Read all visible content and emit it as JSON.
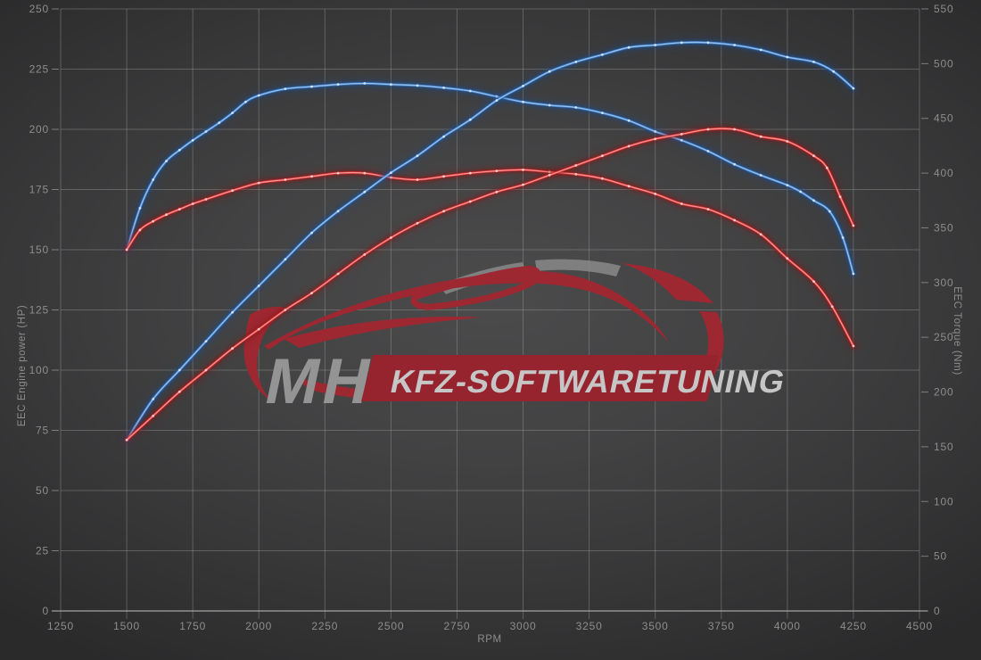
{
  "watermark": {
    "mh": "MH",
    "banner_text": "KFZ-SOFTWARETUNING",
    "car_color": "#9d2832",
    "banner_color": "#96242f",
    "mh_color": "#949494",
    "banner_text_color": "#c6c6c6",
    "glass_color": "#8d8d8d"
  },
  "chart_data": {
    "type": "line",
    "title": "",
    "xlabel": "RPM",
    "ylabel_left": "EEC Engine power (HP)",
    "ylabel_right": "EEC Torque (Nm)",
    "x_range": [
      1250,
      4500
    ],
    "y_left_range": [
      0,
      250
    ],
    "y_right_range": [
      0,
      550
    ],
    "x_ticks": [
      1250,
      1500,
      1750,
      2000,
      2250,
      2500,
      2750,
      3000,
      3250,
      3500,
      3750,
      4000,
      4250,
      4500
    ],
    "y_left_ticks": [
      0,
      25,
      50,
      75,
      100,
      125,
      150,
      175,
      200,
      225,
      250
    ],
    "y_right_ticks": [
      0,
      50,
      100,
      150,
      200,
      250,
      300,
      350,
      400,
      450,
      500,
      550
    ],
    "grid": true,
    "grid_color": "#9a9a9a",
    "legend": "none",
    "series": [
      {
        "name": "blue-torque",
        "axis": "right",
        "unit": "Nm",
        "glow": "#1c4f93",
        "line": "#3c7cc8",
        "core": "#9cc4ee",
        "dot": "#d6e6ff",
        "points": [
          [
            1500,
            330
          ],
          [
            1550,
            368
          ],
          [
            1600,
            394
          ],
          [
            1650,
            411
          ],
          [
            1700,
            421
          ],
          [
            1750,
            430
          ],
          [
            1800,
            438
          ],
          [
            1850,
            446
          ],
          [
            1900,
            455
          ],
          [
            1950,
            465
          ],
          [
            2000,
            471
          ],
          [
            2100,
            477
          ],
          [
            2200,
            479
          ],
          [
            2300,
            481
          ],
          [
            2400,
            482
          ],
          [
            2500,
            481
          ],
          [
            2600,
            480
          ],
          [
            2700,
            478
          ],
          [
            2800,
            475
          ],
          [
            2900,
            470
          ],
          [
            3000,
            465
          ],
          [
            3100,
            462
          ],
          [
            3200,
            460
          ],
          [
            3300,
            455
          ],
          [
            3400,
            448
          ],
          [
            3500,
            438
          ],
          [
            3600,
            430
          ],
          [
            3700,
            420
          ],
          [
            3800,
            408
          ],
          [
            3900,
            398
          ],
          [
            4000,
            389
          ],
          [
            4050,
            383
          ],
          [
            4100,
            375
          ],
          [
            4160,
            365
          ],
          [
            4210,
            341
          ],
          [
            4250,
            308
          ]
        ]
      },
      {
        "name": "red-torque",
        "axis": "right",
        "unit": "Nm",
        "glow": "#8f1616",
        "line": "#d53030",
        "core": "#ff9a9a",
        "dot": "#ffd2d2",
        "points": [
          [
            1500,
            330
          ],
          [
            1550,
            348
          ],
          [
            1600,
            356
          ],
          [
            1650,
            362
          ],
          [
            1700,
            367
          ],
          [
            1750,
            372
          ],
          [
            1800,
            376
          ],
          [
            1900,
            384
          ],
          [
            2000,
            391
          ],
          [
            2100,
            394
          ],
          [
            2200,
            397
          ],
          [
            2300,
            400
          ],
          [
            2400,
            400
          ],
          [
            2500,
            396
          ],
          [
            2600,
            394
          ],
          [
            2700,
            397
          ],
          [
            2800,
            400
          ],
          [
            2900,
            402
          ],
          [
            3000,
            403
          ],
          [
            3100,
            401
          ],
          [
            3200,
            399
          ],
          [
            3300,
            395
          ],
          [
            3400,
            388
          ],
          [
            3500,
            381
          ],
          [
            3600,
            372
          ],
          [
            3700,
            367
          ],
          [
            3800,
            357
          ],
          [
            3900,
            344
          ],
          [
            4000,
            322
          ],
          [
            4100,
            301
          ],
          [
            4170,
            278
          ],
          [
            4250,
            242
          ]
        ]
      },
      {
        "name": "blue-power",
        "axis": "left",
        "unit": "HP",
        "glow": "#1c4f93",
        "line": "#3c7cc8",
        "core": "#9cc4ee",
        "dot": "#d6e6ff",
        "points": [
          [
            1500,
            71
          ],
          [
            1600,
            88
          ],
          [
            1700,
            100
          ],
          [
            1800,
            112
          ],
          [
            1900,
            124
          ],
          [
            2000,
            135
          ],
          [
            2100,
            146
          ],
          [
            2200,
            157
          ],
          [
            2300,
            166
          ],
          [
            2400,
            174
          ],
          [
            2500,
            182
          ],
          [
            2600,
            189
          ],
          [
            2700,
            197
          ],
          [
            2800,
            204
          ],
          [
            2900,
            212
          ],
          [
            3000,
            218
          ],
          [
            3100,
            224
          ],
          [
            3200,
            228
          ],
          [
            3300,
            231
          ],
          [
            3400,
            234
          ],
          [
            3500,
            235
          ],
          [
            3600,
            236
          ],
          [
            3700,
            236
          ],
          [
            3800,
            235
          ],
          [
            3900,
            233
          ],
          [
            4000,
            230
          ],
          [
            4100,
            228
          ],
          [
            4175,
            224
          ],
          [
            4250,
            217
          ]
        ]
      },
      {
        "name": "red-power",
        "axis": "left",
        "unit": "HP",
        "glow": "#8f1616",
        "line": "#d53030",
        "core": "#ff9a9a",
        "dot": "#ffd2d2",
        "points": [
          [
            1500,
            71
          ],
          [
            1600,
            81
          ],
          [
            1700,
            91
          ],
          [
            1800,
            100
          ],
          [
            1900,
            109
          ],
          [
            2000,
            117
          ],
          [
            2100,
            125
          ],
          [
            2200,
            132
          ],
          [
            2300,
            140
          ],
          [
            2400,
            148
          ],
          [
            2500,
            155
          ],
          [
            2600,
            161
          ],
          [
            2700,
            166
          ],
          [
            2800,
            170
          ],
          [
            2900,
            174
          ],
          [
            3000,
            177
          ],
          [
            3100,
            181
          ],
          [
            3200,
            185
          ],
          [
            3300,
            189
          ],
          [
            3400,
            193
          ],
          [
            3500,
            196
          ],
          [
            3600,
            198
          ],
          [
            3700,
            200
          ],
          [
            3800,
            200
          ],
          [
            3900,
            197
          ],
          [
            4000,
            195
          ],
          [
            4100,
            189
          ],
          [
            4150,
            184
          ],
          [
            4200,
            172
          ],
          [
            4250,
            160
          ]
        ]
      }
    ]
  }
}
